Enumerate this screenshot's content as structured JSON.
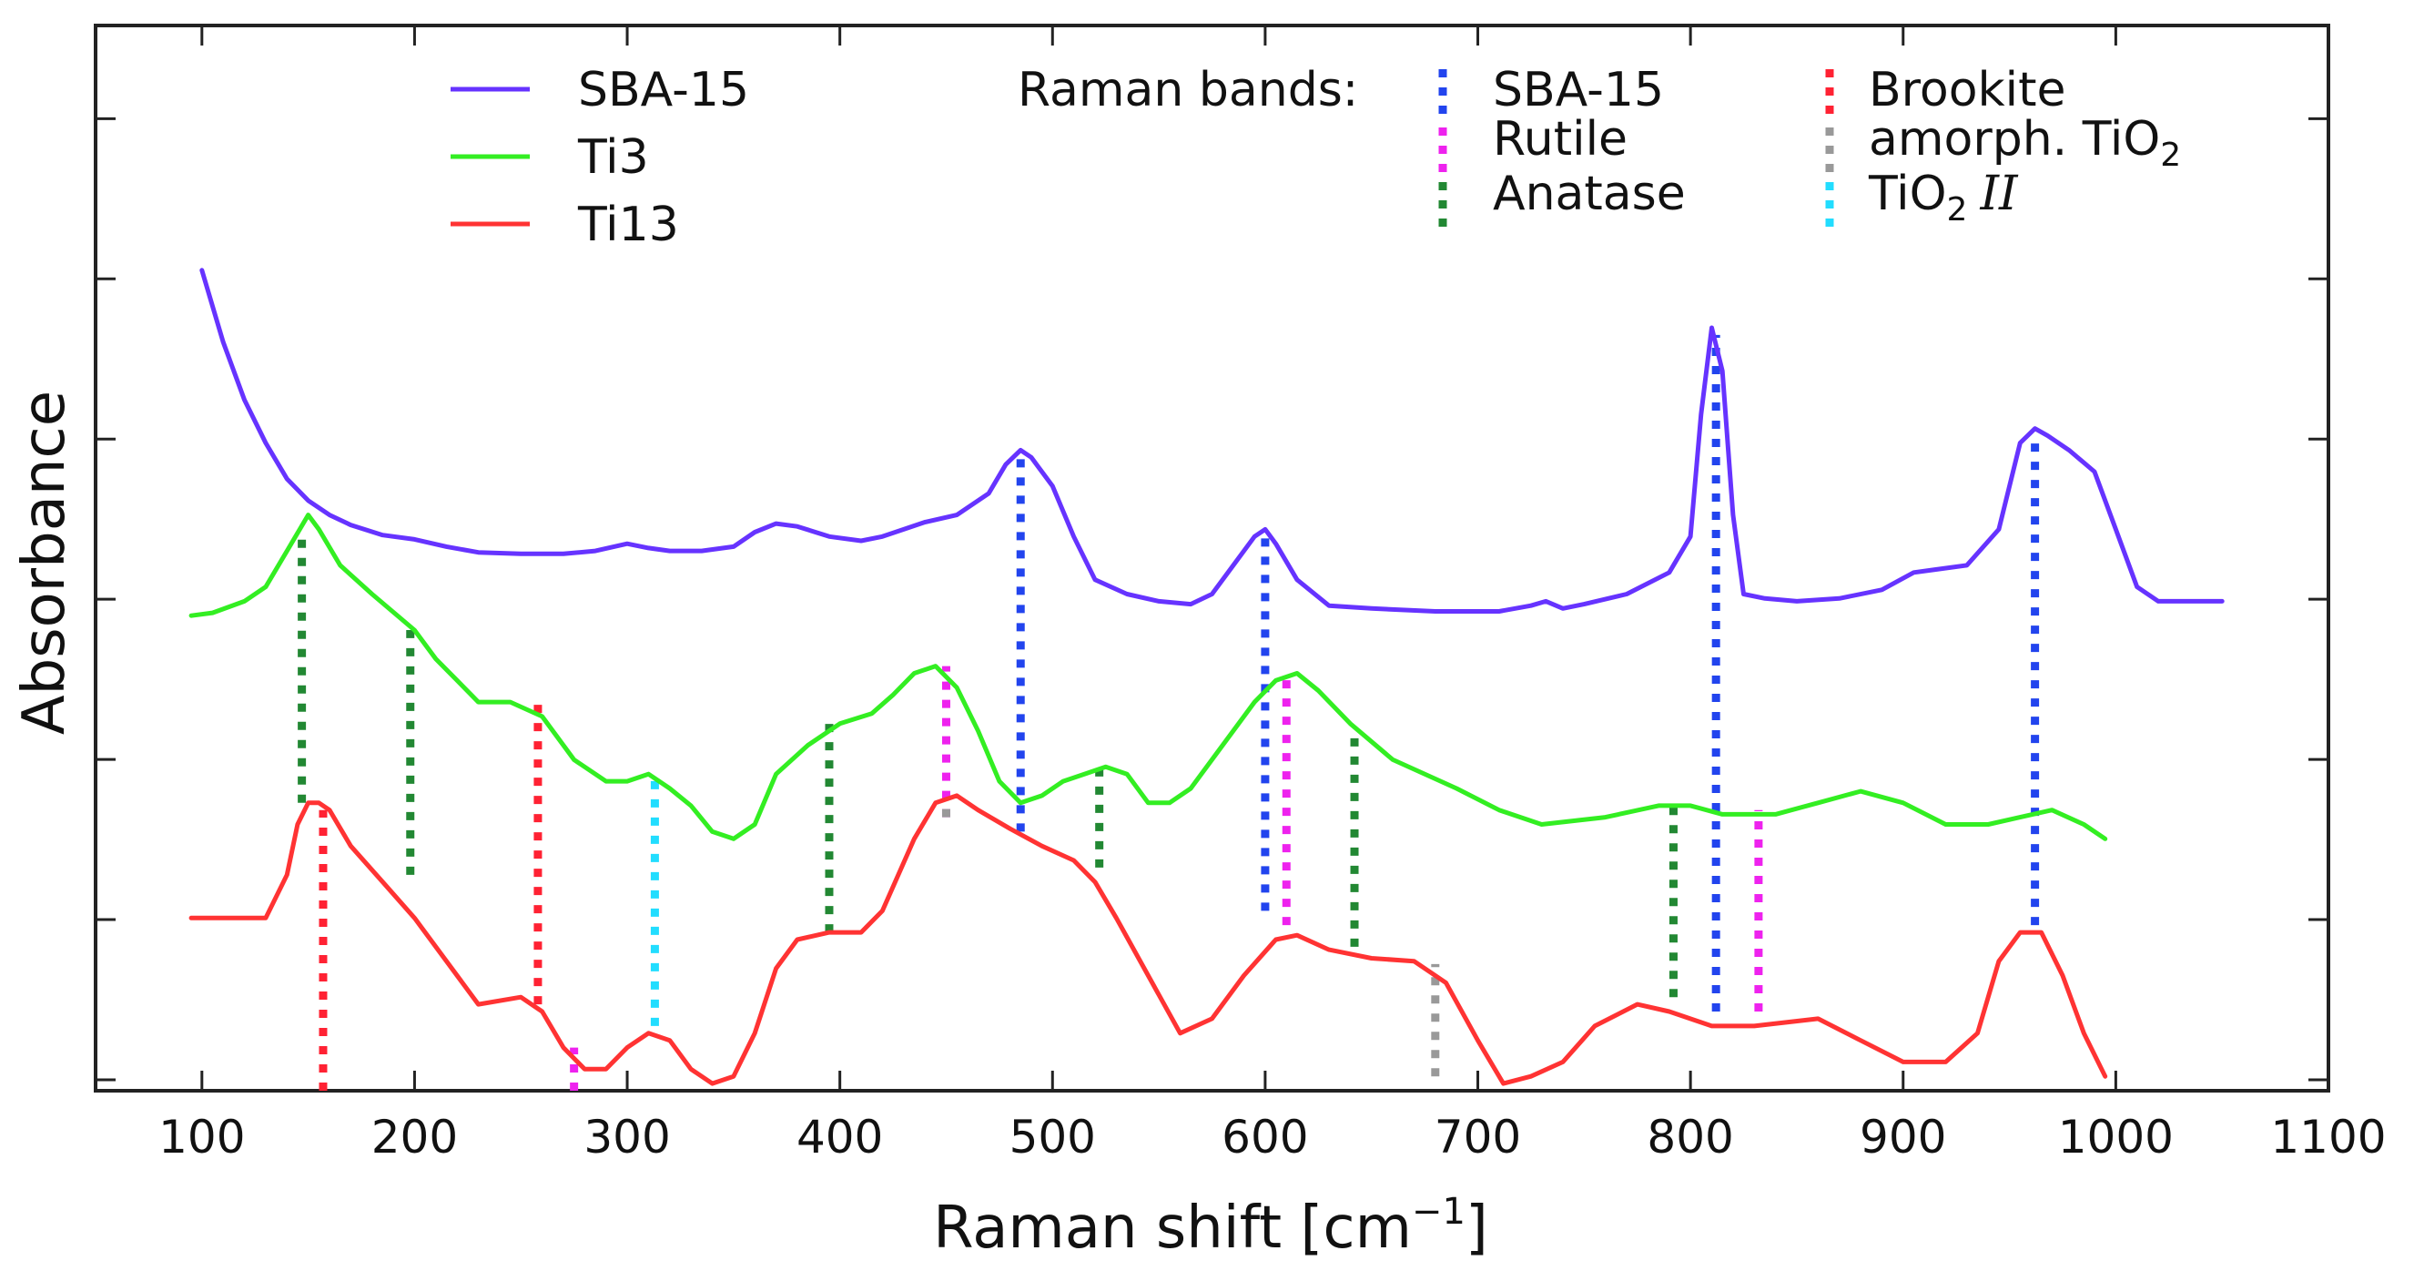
{
  "chart_data": {
    "type": "line",
    "xlabel": "Raman shift [cm",
    "xlabel_exponent": "−1",
    "xlabel_close": "]",
    "ylabel": "Absorbance",
    "xlim": [
      50,
      1100
    ],
    "ylim": [
      0,
      7.4
    ],
    "x_ticks": [
      100,
      200,
      300,
      400,
      500,
      600,
      700,
      800,
      900,
      1000,
      1100
    ],
    "x_tick_labels": [
      "100",
      "200",
      "300",
      "400",
      "500",
      "600",
      "700",
      "800",
      "900",
      "1000",
      "1100"
    ],
    "y_tick_count": 7,
    "y_tick_labels_visible": false,
    "grid": false,
    "series": [
      {
        "name": "SBA-15",
        "color": "#6633ff",
        "x": [
          100,
          110,
          120,
          130,
          140,
          150,
          160,
          170,
          185,
          200,
          215,
          230,
          250,
          270,
          285,
          300,
          310,
          320,
          335,
          350,
          360,
          370,
          380,
          395,
          410,
          420,
          430,
          440,
          455,
          470,
          478,
          485,
          490,
          500,
          510,
          520,
          535,
          550,
          565,
          575,
          585,
          595,
          600,
          605,
          615,
          630,
          650,
          680,
          710,
          725,
          732,
          740,
          750,
          770,
          790,
          800,
          805,
          810,
          815,
          820,
          825,
          835,
          850,
          870,
          890,
          905,
          915,
          930,
          945,
          955,
          962,
          968,
          978,
          990,
          1000,
          1010,
          1020,
          1035,
          1050
        ],
        "y": [
          5.7,
          5.2,
          4.8,
          4.5,
          4.25,
          4.1,
          4.0,
          3.93,
          3.86,
          3.83,
          3.78,
          3.74,
          3.73,
          3.73,
          3.75,
          3.8,
          3.77,
          3.75,
          3.75,
          3.78,
          3.88,
          3.94,
          3.92,
          3.85,
          3.82,
          3.85,
          3.9,
          3.95,
          4.0,
          4.15,
          4.35,
          4.45,
          4.4,
          4.2,
          3.85,
          3.55,
          3.45,
          3.4,
          3.38,
          3.45,
          3.65,
          3.85,
          3.9,
          3.8,
          3.55,
          3.37,
          3.35,
          3.33,
          3.33,
          3.37,
          3.4,
          3.35,
          3.38,
          3.45,
          3.6,
          3.85,
          4.7,
          5.3,
          5.0,
          4.0,
          3.45,
          3.42,
          3.4,
          3.42,
          3.48,
          3.6,
          3.62,
          3.65,
          3.9,
          4.5,
          4.6,
          4.55,
          4.45,
          4.3,
          3.9,
          3.5,
          3.4,
          3.4,
          3.4
        ]
      },
      {
        "name": "Ti3",
        "color": "#33ee22",
        "x": [
          95,
          105,
          120,
          130,
          140,
          150,
          155,
          165,
          180,
          200,
          210,
          220,
          230,
          245,
          260,
          275,
          290,
          300,
          310,
          320,
          330,
          340,
          350,
          360,
          370,
          385,
          400,
          415,
          425,
          435,
          445,
          455,
          465,
          475,
          485,
          495,
          505,
          515,
          525,
          535,
          545,
          555,
          565,
          580,
          595,
          605,
          615,
          625,
          640,
          660,
          690,
          710,
          730,
          760,
          785,
          800,
          815,
          840,
          860,
          880,
          900,
          920,
          940,
          955,
          970,
          985,
          995
        ],
        "y": [
          3.3,
          3.32,
          3.4,
          3.5,
          3.75,
          4.0,
          3.9,
          3.65,
          3.45,
          3.2,
          3.0,
          2.85,
          2.7,
          2.7,
          2.6,
          2.3,
          2.15,
          2.15,
          2.2,
          2.1,
          1.98,
          1.8,
          1.75,
          1.85,
          2.2,
          2.4,
          2.55,
          2.62,
          2.75,
          2.9,
          2.95,
          2.8,
          2.5,
          2.15,
          2.0,
          2.05,
          2.15,
          2.2,
          2.25,
          2.2,
          2.0,
          2.0,
          2.1,
          2.4,
          2.7,
          2.85,
          2.9,
          2.78,
          2.55,
          2.3,
          2.1,
          1.95,
          1.85,
          1.9,
          1.98,
          1.98,
          1.92,
          1.92,
          2.0,
          2.08,
          2.0,
          1.85,
          1.85,
          1.9,
          1.95,
          1.85,
          1.75
        ]
      },
      {
        "name": "Ti13",
        "color": "#ff3333",
        "x": [
          95,
          110,
          130,
          140,
          145,
          150,
          155,
          160,
          170,
          185,
          200,
          215,
          230,
          250,
          260,
          270,
          280,
          290,
          300,
          310,
          320,
          330,
          340,
          350,
          360,
          370,
          380,
          395,
          410,
          420,
          435,
          445,
          455,
          465,
          480,
          495,
          510,
          520,
          530,
          545,
          560,
          575,
          590,
          605,
          615,
          630,
          650,
          670,
          685,
          700,
          712,
          725,
          740,
          755,
          775,
          790,
          810,
          830,
          860,
          880,
          900,
          920,
          935,
          945,
          955,
          965,
          975,
          985,
          995
        ],
        "y": [
          1.2,
          1.2,
          1.2,
          1.5,
          1.85,
          2.0,
          2.0,
          1.95,
          1.7,
          1.45,
          1.2,
          0.9,
          0.6,
          0.65,
          0.55,
          0.3,
          0.15,
          0.15,
          0.3,
          0.4,
          0.35,
          0.15,
          0.05,
          0.1,
          0.4,
          0.85,
          1.05,
          1.1,
          1.1,
          1.25,
          1.75,
          2.0,
          2.05,
          1.95,
          1.82,
          1.7,
          1.6,
          1.45,
          1.2,
          0.8,
          0.4,
          0.5,
          0.8,
          1.05,
          1.08,
          0.98,
          0.92,
          0.9,
          0.75,
          0.35,
          0.05,
          0.1,
          0.2,
          0.45,
          0.6,
          0.55,
          0.45,
          0.45,
          0.5,
          0.35,
          0.2,
          0.2,
          0.4,
          0.9,
          1.1,
          1.1,
          0.8,
          0.4,
          0.1
        ]
      }
    ],
    "band_markers": [
      {
        "group": "SBA-15",
        "color": "#2244ee",
        "bands": [
          [
            485,
            1.8,
            4.45
          ],
          [
            600,
            1.25,
            3.9
          ],
          [
            812,
            0.55,
            5.25
          ],
          [
            962,
            1.15,
            4.55
          ]
        ]
      },
      {
        "group": "Rutile",
        "color": "#ee22ee",
        "bands": [
          [
            275,
            0.0,
            0.3
          ],
          [
            450,
            1.9,
            2.95
          ],
          [
            610,
            1.15,
            2.88
          ],
          [
            832,
            0.55,
            1.95
          ]
        ]
      },
      {
        "group": "Anatase",
        "color": "#228833",
        "bands": [
          [
            147,
            2.0,
            3.85
          ],
          [
            198,
            1.5,
            3.2
          ],
          [
            395,
            1.1,
            2.55
          ],
          [
            522,
            1.55,
            2.25
          ],
          [
            642,
            1.0,
            2.48
          ],
          [
            792,
            0.65,
            1.98
          ]
        ]
      },
      {
        "group": "Brookite",
        "color": "#ff2233",
        "bands": [
          [
            157,
            0.0,
            1.95
          ],
          [
            258,
            0.6,
            2.7
          ]
        ]
      },
      {
        "group": "amorph. TiO2",
        "color": "#999999",
        "bands": [
          [
            450,
            1.9,
            2.0
          ],
          [
            680,
            0.1,
            0.88
          ]
        ]
      },
      {
        "group": "TiO2 II",
        "color": "#22ddff",
        "bands": [
          [
            313,
            0.45,
            2.2
          ]
        ]
      }
    ]
  },
  "legend": {
    "series_labels": [
      "SBA-15",
      "Ti3",
      "Ti13"
    ],
    "bands_title": "Raman bands:",
    "band_labels": {
      "sba": "SBA-15",
      "rutile": "Rutile",
      "anatase": "Anatase",
      "brookite": "Brookite",
      "amorph": "amorph. TiO",
      "amorph_sub": "2",
      "tio2": "TiO",
      "tio2_sub": "2",
      "tio2_suffix": "II"
    },
    "band_colors": {
      "sba": "#2244ee",
      "rutile": "#ee22ee",
      "anatase": "#228833",
      "brookite": "#ff2233",
      "amorph": "#999999",
      "tio2": "#22ddff"
    }
  }
}
